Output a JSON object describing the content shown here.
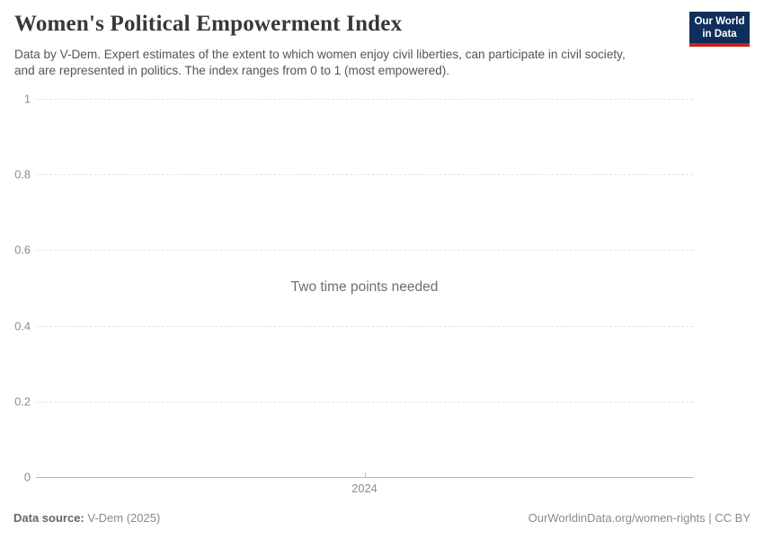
{
  "header": {
    "title": "Women's Political Empowerment Index",
    "subtitle": "Data by V-Dem. Expert estimates of the extent to which women enjoy civil liberties, can participate in civil society, and are represented in politics. The index ranges from 0 to 1 (most empowered).",
    "logo": {
      "line1": "Our World",
      "line2": "in Data",
      "background_color": "#0f2e5a",
      "accent_color": "#c8231d"
    }
  },
  "chart_data": {
    "type": "line",
    "title": "Women's Political Empowerment Index",
    "message": "Two time points needed",
    "series": [],
    "categories": [],
    "xlabel": "",
    "ylabel": "",
    "ylim": [
      0,
      1
    ],
    "grid": "horizontal-dashed",
    "legend_position": "none",
    "yticks": [
      {
        "value": 0,
        "label": "0"
      },
      {
        "value": 0.2,
        "label": "0.2"
      },
      {
        "value": 0.4,
        "label": "0.4"
      },
      {
        "value": 0.6,
        "label": "0.6"
      },
      {
        "value": 0.8,
        "label": "0.8"
      },
      {
        "value": 1,
        "label": "1"
      }
    ],
    "xticks": [
      {
        "label": "2024"
      }
    ]
  },
  "footer": {
    "source_label": "Data source:",
    "source_value": "V-Dem (2025)",
    "attribution": "OurWorldinData.org/women-rights | CC BY"
  }
}
